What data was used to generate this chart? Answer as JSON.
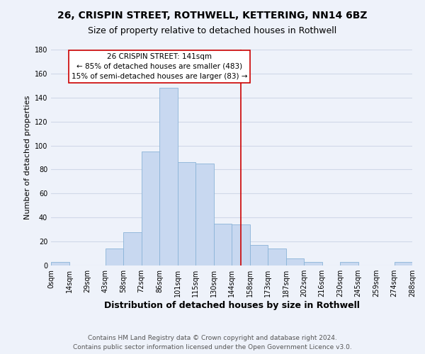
{
  "title_line1": "26, CRISPIN STREET, ROTHWELL, KETTERING, NN14 6BZ",
  "title_line2": "Size of property relative to detached houses in Rothwell",
  "xlabel": "Distribution of detached houses by size in Rothwell",
  "ylabel": "Number of detached properties",
  "bin_labels": [
    "0sqm",
    "14sqm",
    "29sqm",
    "43sqm",
    "58sqm",
    "72sqm",
    "86sqm",
    "101sqm",
    "115sqm",
    "130sqm",
    "144sqm",
    "158sqm",
    "173sqm",
    "187sqm",
    "202sqm",
    "216sqm",
    "230sqm",
    "245sqm",
    "259sqm",
    "274sqm",
    "288sqm"
  ],
  "bar_heights": [
    3,
    0,
    0,
    14,
    28,
    95,
    148,
    86,
    85,
    35,
    34,
    17,
    14,
    6,
    3,
    0,
    3,
    0,
    0,
    3
  ],
  "bar_color": "#c8d8f0",
  "bar_edge_color": "#8ab4d8",
  "vline_color": "#cc0000",
  "annotation_line1": "26 CRISPIN STREET: 141sqm",
  "annotation_line2": "← 85% of detached houses are smaller (483)",
  "annotation_line3": "15% of semi-detached houses are larger (83) →",
  "annotation_box_color": "#ffffff",
  "annotation_box_edge_color": "#cc0000",
  "footer_line1": "Contains HM Land Registry data © Crown copyright and database right 2024.",
  "footer_line2": "Contains public sector information licensed under the Open Government Licence v3.0.",
  "background_color": "#eef2fa",
  "grid_color": "#d0d8e8",
  "ylim": [
    0,
    180
  ],
  "title_fontsize": 10,
  "subtitle_fontsize": 9,
  "xlabel_fontsize": 9,
  "ylabel_fontsize": 8,
  "tick_fontsize": 7,
  "annotation_fontsize": 7.5,
  "footer_fontsize": 6.5
}
